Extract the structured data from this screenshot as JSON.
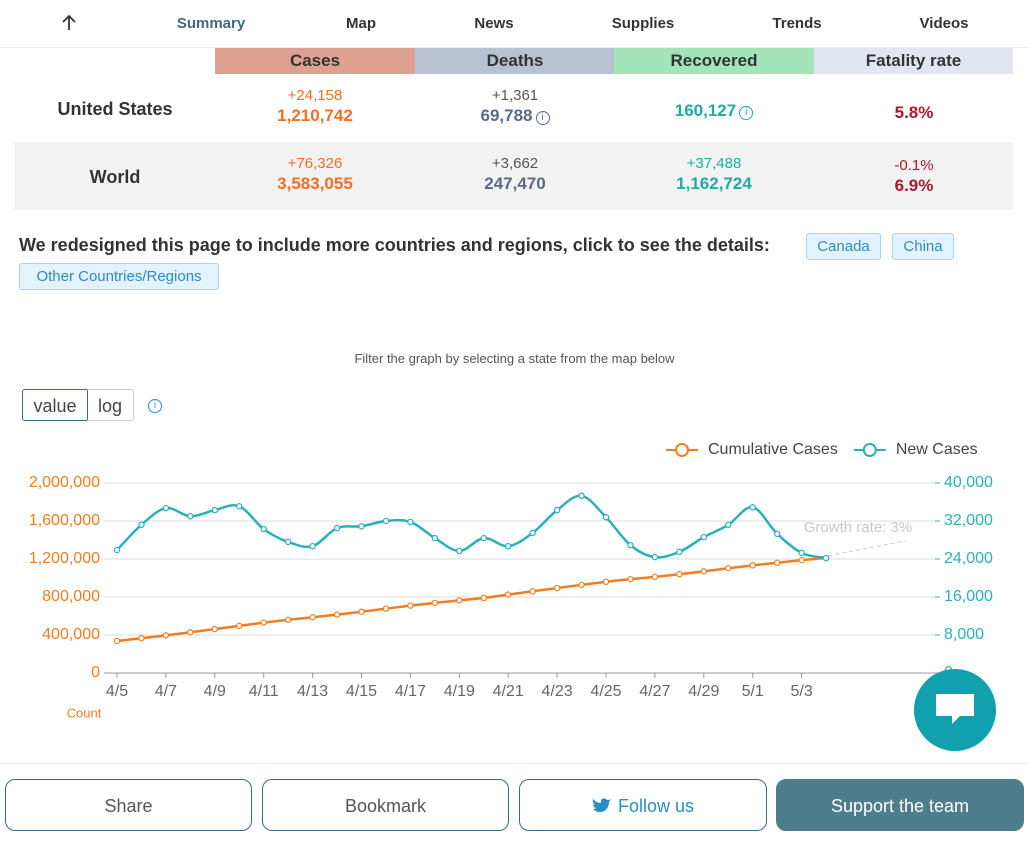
{
  "nav": {
    "items": [
      "Summary",
      "Map",
      "News",
      "Supplies",
      "Trends",
      "Videos"
    ]
  },
  "table": {
    "columns": [
      "Cases",
      "Deaths",
      "Recovered",
      "Fatality rate"
    ],
    "rows": [
      {
        "region": "United States",
        "cells": [
          {
            "change": "+24,158",
            "total": "1,210,742"
          },
          {
            "change": "+1,361",
            "total": "69,788"
          },
          {
            "total": "160,127"
          },
          {
            "total": "5.8%"
          }
        ]
      },
      {
        "region": "World",
        "cells": [
          {
            "change": "+76,326",
            "total": "3,583,055"
          },
          {
            "change": "+3,662",
            "total": "247,470"
          },
          {
            "change": "+37,488",
            "total": "1,162,724"
          },
          {
            "change": "-0.1%",
            "total": "6.9%"
          }
        ]
      }
    ]
  },
  "notice": {
    "text": "We redesigned this page to include more countries and regions, click to see the details:",
    "links": [
      "Canada",
      "China",
      "Other Countries/Regions"
    ]
  },
  "filter_hint": "Filter the graph by selecting a state from the map below",
  "scale_toggle": [
    "value",
    "log"
  ],
  "chart_data": {
    "type": "line",
    "annotation": "Growth rate: 3%",
    "y_label": "Count",
    "categories": [
      "4/5",
      null,
      "4/7",
      null,
      "4/9",
      null,
      "4/11",
      null,
      "4/13",
      null,
      "4/15",
      null,
      "4/17",
      null,
      "4/19",
      null,
      "4/21",
      null,
      "4/23",
      null,
      "4/25",
      null,
      "4/27",
      null,
      "4/29",
      null,
      "5/1",
      null,
      "5/3",
      null
    ],
    "series": [
      {
        "name": "Cumulative Cases",
        "color": "#f47c20",
        "values": [
          337000,
          366000,
          396000,
          429000,
          462000,
          496000,
          530000,
          560000,
          587000,
          614000,
          645000,
          677000,
          709000,
          738000,
          764000,
          790000,
          825000,
          860000,
          894000,
          928000,
          960000,
          988000,
          1012000,
          1040000,
          1070000,
          1103000,
          1133000,
          1160000,
          1188000,
          1210000
        ]
      },
      {
        "name": "New Cases",
        "color": "#2ab0b5",
        "axis": "y2",
        "values": [
          25900,
          31200,
          34700,
          33000,
          34300,
          35100,
          30300,
          27600,
          26700,
          30500,
          30900,
          32000,
          31800,
          28400,
          25700,
          28400,
          26700,
          29500,
          34300,
          37300,
          32800,
          26900,
          24400,
          25500,
          28600,
          31200,
          34900,
          29300,
          25300,
          24200
        ]
      }
    ],
    "ylim": [
      0,
      2000000
    ],
    "yticks": [
      0,
      {
        "value": 400000,
        "label": "400,000"
      },
      {
        "value": 800000,
        "label": "800,000"
      },
      {
        "value": 1200000,
        "label": "1,200,000"
      },
      {
        "value": 1600000,
        "label": "1,600,000"
      },
      {
        "value": 2000000,
        "label": "2,000,000"
      }
    ],
    "y2lim": [
      0,
      40000
    ],
    "y2ticks": [
      0,
      {
        "value": 8000,
        "label": "8,000"
      },
      {
        "value": 16000,
        "label": "16,000"
      },
      {
        "value": 24000,
        "label": "24,000"
      },
      {
        "value": 32000,
        "label": "32,000"
      },
      {
        "value": 40000,
        "label": "40,000"
      }
    ],
    "grid": true,
    "legend": "top-right"
  },
  "actions": [
    "Share",
    "Bookmark",
    "Follow us",
    "Support the team"
  ]
}
